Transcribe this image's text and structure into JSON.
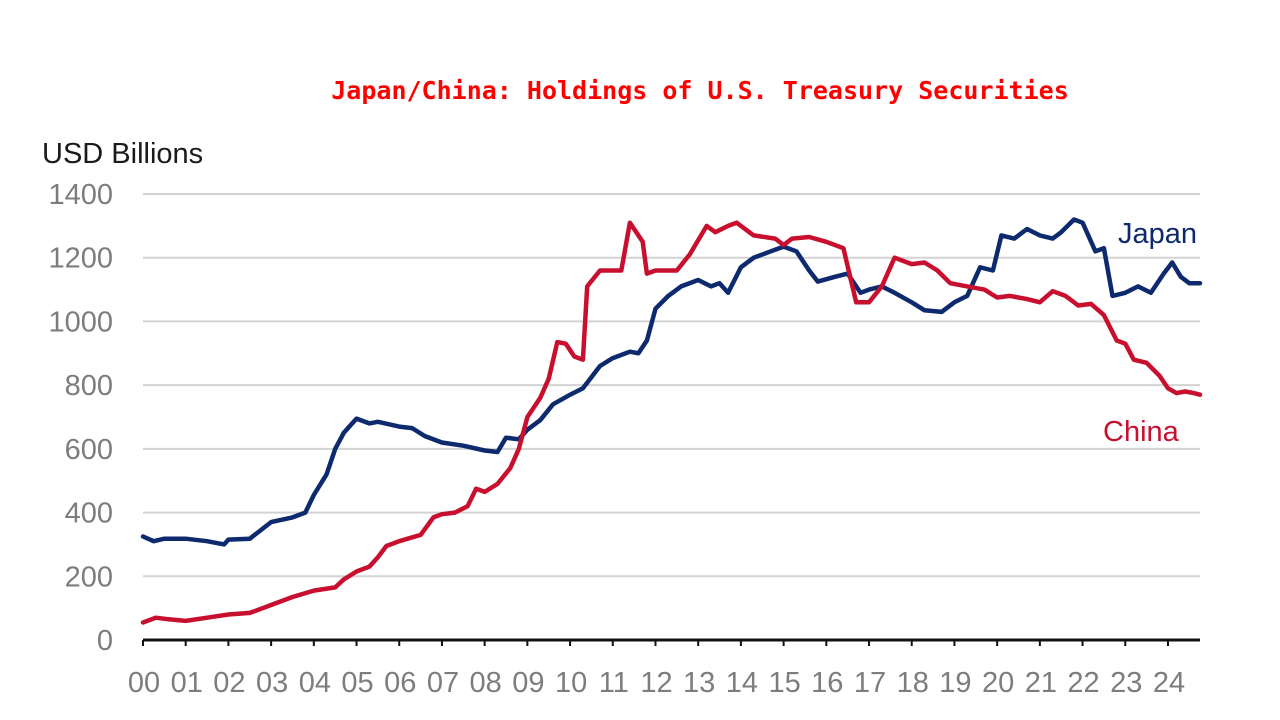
{
  "chart_data": {
    "type": "line",
    "title": "Japan/China: Holdings of U.S. Treasury Securities",
    "ylabel": "USD Billions",
    "xlabel": "",
    "ylim": [
      0,
      1400
    ],
    "yticks": [
      0,
      200,
      400,
      600,
      800,
      1000,
      1200,
      1400
    ],
    "xlim": [
      2000,
      2024.75
    ],
    "xtick_labels": [
      "00",
      "01",
      "02",
      "03",
      "04",
      "05",
      "06",
      "07",
      "08",
      "09",
      "10",
      "11",
      "12",
      "13",
      "14",
      "15",
      "16",
      "17",
      "18",
      "19",
      "20",
      "21",
      "22",
      "23",
      "24"
    ],
    "grid": true,
    "series": [
      {
        "name": "Japan",
        "color": "#0d2a6e",
        "points": [
          [
            2000.0,
            325
          ],
          [
            2000.25,
            310
          ],
          [
            2000.5,
            318
          ],
          [
            2001.0,
            318
          ],
          [
            2001.5,
            310
          ],
          [
            2001.9,
            300
          ],
          [
            2002.0,
            315
          ],
          [
            2002.5,
            318
          ],
          [
            2003.0,
            370
          ],
          [
            2003.5,
            385
          ],
          [
            2003.8,
            400
          ],
          [
            2004.0,
            455
          ],
          [
            2004.3,
            520
          ],
          [
            2004.5,
            600
          ],
          [
            2004.7,
            650
          ],
          [
            2005.0,
            695
          ],
          [
            2005.3,
            680
          ],
          [
            2005.5,
            685
          ],
          [
            2006.0,
            670
          ],
          [
            2006.3,
            665
          ],
          [
            2006.6,
            640
          ],
          [
            2007.0,
            620
          ],
          [
            2007.5,
            610
          ],
          [
            2008.0,
            595
          ],
          [
            2008.3,
            590
          ],
          [
            2008.5,
            635
          ],
          [
            2008.8,
            630
          ],
          [
            2009.0,
            660
          ],
          [
            2009.3,
            690
          ],
          [
            2009.6,
            740
          ],
          [
            2010.0,
            770
          ],
          [
            2010.3,
            790
          ],
          [
            2010.7,
            860
          ],
          [
            2011.0,
            885
          ],
          [
            2011.4,
            905
          ],
          [
            2011.6,
            900
          ],
          [
            2011.8,
            940
          ],
          [
            2012.0,
            1040
          ],
          [
            2012.3,
            1080
          ],
          [
            2012.6,
            1110
          ],
          [
            2013.0,
            1130
          ],
          [
            2013.3,
            1110
          ],
          [
            2013.5,
            1120
          ],
          [
            2013.7,
            1090
          ],
          [
            2014.0,
            1170
          ],
          [
            2014.3,
            1200
          ],
          [
            2014.7,
            1220
          ],
          [
            2015.0,
            1235
          ],
          [
            2015.3,
            1220
          ],
          [
            2015.6,
            1160
          ],
          [
            2015.8,
            1125
          ],
          [
            2016.2,
            1140
          ],
          [
            2016.5,
            1150
          ],
          [
            2016.8,
            1090
          ],
          [
            2017.0,
            1100
          ],
          [
            2017.3,
            1110
          ],
          [
            2017.6,
            1090
          ],
          [
            2018.0,
            1060
          ],
          [
            2018.3,
            1035
          ],
          [
            2018.7,
            1030
          ],
          [
            2019.0,
            1060
          ],
          [
            2019.3,
            1080
          ],
          [
            2019.6,
            1170
          ],
          [
            2019.9,
            1160
          ],
          [
            2020.1,
            1270
          ],
          [
            2020.4,
            1260
          ],
          [
            2020.7,
            1290
          ],
          [
            2021.0,
            1270
          ],
          [
            2021.3,
            1260
          ],
          [
            2021.5,
            1280
          ],
          [
            2021.8,
            1320
          ],
          [
            2022.0,
            1310
          ],
          [
            2022.3,
            1220
          ],
          [
            2022.5,
            1230
          ],
          [
            2022.7,
            1080
          ],
          [
            2023.0,
            1090
          ],
          [
            2023.3,
            1110
          ],
          [
            2023.6,
            1090
          ],
          [
            2023.9,
            1150
          ],
          [
            2024.1,
            1185
          ],
          [
            2024.3,
            1140
          ],
          [
            2024.5,
            1120
          ],
          [
            2024.75,
            1120
          ]
        ]
      },
      {
        "name": "China",
        "color": "#c8102e",
        "points": [
          [
            2000.0,
            55
          ],
          [
            2000.3,
            70
          ],
          [
            2000.6,
            65
          ],
          [
            2001.0,
            60
          ],
          [
            2001.5,
            70
          ],
          [
            2002.0,
            80
          ],
          [
            2002.5,
            85
          ],
          [
            2003.0,
            110
          ],
          [
            2003.5,
            135
          ],
          [
            2004.0,
            155
          ],
          [
            2004.5,
            165
          ],
          [
            2004.7,
            190
          ],
          [
            2005.0,
            215
          ],
          [
            2005.3,
            230
          ],
          [
            2005.5,
            260
          ],
          [
            2005.7,
            295
          ],
          [
            2006.0,
            310
          ],
          [
            2006.5,
            330
          ],
          [
            2006.8,
            385
          ],
          [
            2007.0,
            395
          ],
          [
            2007.3,
            400
          ],
          [
            2007.6,
            420
          ],
          [
            2007.8,
            475
          ],
          [
            2008.0,
            465
          ],
          [
            2008.3,
            490
          ],
          [
            2008.6,
            540
          ],
          [
            2008.8,
            600
          ],
          [
            2009.0,
            700
          ],
          [
            2009.3,
            760
          ],
          [
            2009.5,
            820
          ],
          [
            2009.7,
            935
          ],
          [
            2009.9,
            930
          ],
          [
            2010.1,
            890
          ],
          [
            2010.3,
            880
          ],
          [
            2010.4,
            1110
          ],
          [
            2010.7,
            1160
          ],
          [
            2011.0,
            1160
          ],
          [
            2011.2,
            1160
          ],
          [
            2011.4,
            1310
          ],
          [
            2011.7,
            1250
          ],
          [
            2011.8,
            1150
          ],
          [
            2012.0,
            1160
          ],
          [
            2012.5,
            1160
          ],
          [
            2012.8,
            1210
          ],
          [
            2013.2,
            1300
          ],
          [
            2013.4,
            1280
          ],
          [
            2013.7,
            1300
          ],
          [
            2013.9,
            1310
          ],
          [
            2014.3,
            1270
          ],
          [
            2014.8,
            1260
          ],
          [
            2015.0,
            1240
          ],
          [
            2015.2,
            1260
          ],
          [
            2015.6,
            1265
          ],
          [
            2016.0,
            1250
          ],
          [
            2016.4,
            1230
          ],
          [
            2016.7,
            1060
          ],
          [
            2017.0,
            1060
          ],
          [
            2017.3,
            1110
          ],
          [
            2017.6,
            1200
          ],
          [
            2018.0,
            1180
          ],
          [
            2018.3,
            1185
          ],
          [
            2018.6,
            1160
          ],
          [
            2018.9,
            1120
          ],
          [
            2019.3,
            1110
          ],
          [
            2019.7,
            1100
          ],
          [
            2020.0,
            1075
          ],
          [
            2020.3,
            1080
          ],
          [
            2020.7,
            1070
          ],
          [
            2021.0,
            1060
          ],
          [
            2021.3,
            1095
          ],
          [
            2021.6,
            1080
          ],
          [
            2021.9,
            1050
          ],
          [
            2022.2,
            1055
          ],
          [
            2022.5,
            1020
          ],
          [
            2022.8,
            940
          ],
          [
            2023.0,
            930
          ],
          [
            2023.2,
            880
          ],
          [
            2023.5,
            870
          ],
          [
            2023.8,
            830
          ],
          [
            2024.0,
            790
          ],
          [
            2024.2,
            775
          ],
          [
            2024.4,
            780
          ],
          [
            2024.6,
            775
          ],
          [
            2024.75,
            770
          ]
        ]
      }
    ]
  }
}
